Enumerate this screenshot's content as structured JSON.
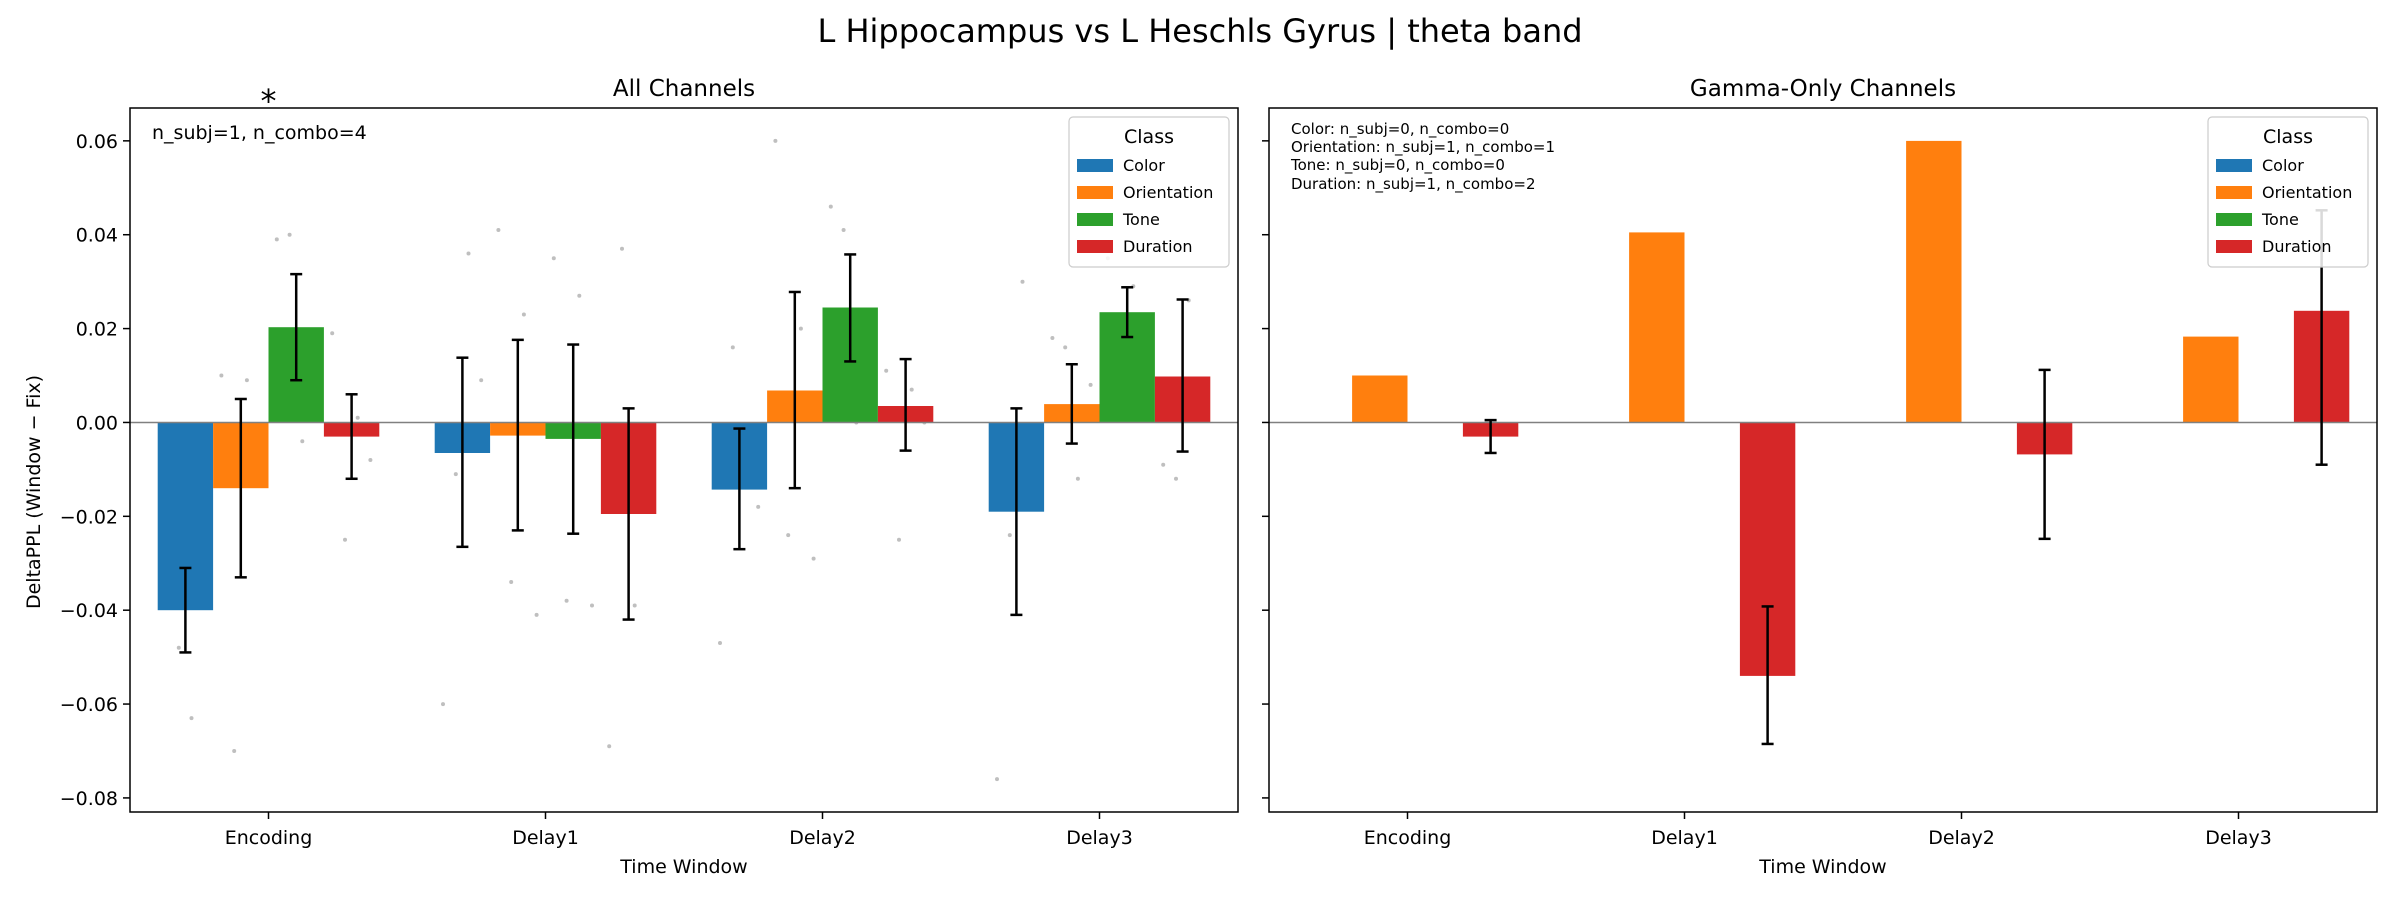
{
  "figure": {
    "suptitle": "L Hippocampus vs L Heschls Gyrus  |  theta band",
    "ylabel": "DeltaPPL (Window − Fix)",
    "legend_title": "Class",
    "colors": {
      "Color": "#1f77b4",
      "Orientation": "#ff7f0e",
      "Tone": "#2ca02c",
      "Duration": "#d62728",
      "errorbar": "#000000",
      "zero_line": "#808080",
      "scatter": "#bfbfbf",
      "significance": "#ff0000"
    }
  },
  "chart_data": [
    {
      "type": "bar",
      "title": "All Channels",
      "xlabel": "Time Window",
      "ylabel": "DeltaPPL (Window − Fix)",
      "ylim": [
        -0.083,
        0.067
      ],
      "yticks": [
        "0.06",
        "0.04",
        "0.02",
        "0.00",
        "−0.02",
        "−0.04",
        "−0.06",
        "−0.08"
      ],
      "ytick_values": [
        0.06,
        0.04,
        0.02,
        0.0,
        -0.02,
        -0.04,
        -0.06,
        -0.08
      ],
      "categories": [
        "Encoding",
        "Delay1",
        "Delay2",
        "Delay3"
      ],
      "legend": {
        "title": "Class",
        "position": "top-right",
        "entries": [
          "Color",
          "Orientation",
          "Tone",
          "Duration"
        ]
      },
      "annotation": "n_subj=1, n_combo=4",
      "significance": [
        {
          "category": "Encoding",
          "label": "*"
        }
      ],
      "series": [
        {
          "name": "Color",
          "values": [
            -0.04,
            -0.0065,
            -0.0143,
            -0.019
          ],
          "err_low": [
            -0.049,
            -0.0265,
            -0.027,
            -0.041
          ],
          "err_high": [
            -0.031,
            0.0138,
            -0.0013,
            0.003
          ]
        },
        {
          "name": "Orientation",
          "values": [
            -0.014,
            -0.0028,
            0.0068,
            0.0039
          ],
          "err_low": [
            -0.033,
            -0.023,
            -0.014,
            -0.0045
          ],
          "err_high": [
            0.005,
            0.0176,
            0.0278,
            0.0124
          ]
        },
        {
          "name": "Tone",
          "values": [
            0.0203,
            -0.0035,
            0.0245,
            0.0235
          ],
          "err_low": [
            0.009,
            -0.0237,
            0.013,
            0.0182
          ],
          "err_high": [
            0.0316,
            0.0166,
            0.0358,
            0.0288
          ]
        },
        {
          "name": "Duration",
          "values": [
            -0.003,
            -0.0195,
            0.0035,
            0.0098
          ],
          "err_low": [
            -0.012,
            -0.042,
            -0.006,
            -0.0062
          ],
          "err_high": [
            0.006,
            0.003,
            0.0135,
            0.0262
          ]
        }
      ],
      "scatter": [
        [
          [
            -0.023,
            -0.048,
            -0.063,
            -0.027
          ],
          [
            -0.06,
            -0.011,
            0.036,
            0.009
          ],
          [
            -0.047,
            0.016,
            -0.008,
            -0.018
          ],
          [
            -0.076,
            -0.024,
            0.03,
            -0.005
          ]
        ],
        [
          [
            0.01,
            -0.07,
            0.009,
            -0.009
          ],
          [
            0.041,
            -0.034,
            0.023,
            -0.041
          ],
          [
            0.06,
            -0.024,
            0.02,
            -0.029
          ],
          [
            0.018,
            0.016,
            -0.012,
            0.008
          ]
        ],
        [
          [
            0.039,
            0.04,
            -0.004,
            0.005
          ],
          [
            0.035,
            -0.038,
            0.027,
            -0.039
          ],
          [
            0.046,
            0.041,
            0.0,
            0.011
          ],
          [
            0.035,
            0.015,
            0.029,
            0.017
          ]
        ],
        [
          [
            0.019,
            -0.025,
            0.001,
            -0.008
          ],
          [
            -0.069,
            0.037,
            -0.039,
            -0.009
          ],
          [
            0.011,
            -0.025,
            0.007,
            0.0
          ],
          [
            -0.009,
            -0.012,
            0.026,
            0.004
          ]
        ]
      ]
    },
    {
      "type": "bar",
      "title": "Gamma-Only Channels",
      "xlabel": "Time Window",
      "ylim": [
        -0.083,
        0.067
      ],
      "categories": [
        "Encoding",
        "Delay1",
        "Delay2",
        "Delay3"
      ],
      "legend": {
        "title": "Class",
        "position": "top-right",
        "entries": [
          "Color",
          "Orientation",
          "Tone",
          "Duration"
        ]
      },
      "annotation_lines": [
        "Color: n_subj=0, n_combo=0",
        "Orientation: n_subj=1, n_combo=1",
        "Tone: n_subj=0, n_combo=0",
        "Duration: n_subj=1, n_combo=2"
      ],
      "series": [
        {
          "name": "Color",
          "values": [
            null,
            null,
            null,
            null
          ]
        },
        {
          "name": "Orientation",
          "values": [
            0.01,
            0.0405,
            0.06,
            0.0183
          ]
        },
        {
          "name": "Tone",
          "values": [
            null,
            null,
            null,
            null
          ]
        },
        {
          "name": "Duration",
          "values": [
            -0.003,
            -0.054,
            -0.0068,
            0.0238
          ],
          "err_low": [
            -0.0065,
            -0.0685,
            -0.0248,
            -0.009
          ],
          "err_high": [
            0.0005,
            -0.0392,
            0.0112,
            0.0452
          ]
        }
      ]
    }
  ]
}
